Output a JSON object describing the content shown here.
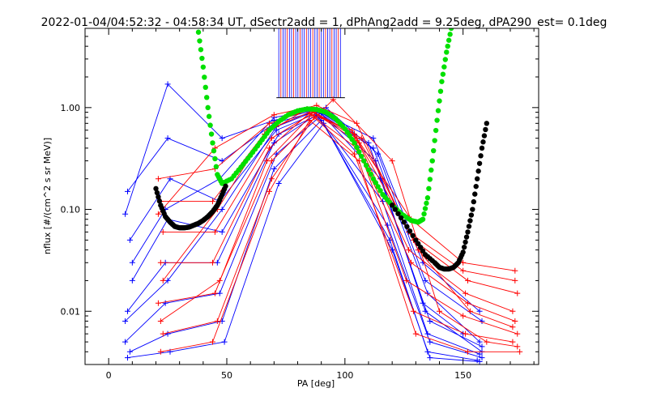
{
  "chart_data": {
    "type": "line",
    "title": "2022-01-04/04:52:32 - 04:58:34 UT, dSectr2add = 1, dPhAng2add = 9.25deg, dPA290_est=   0.1deg",
    "xlabel": "PA [deg]",
    "ylabel": "nflux [#/(cm^2 s sr MeV)]",
    "xlim": [
      -10,
      182
    ],
    "ylim": [
      0.003,
      6.0
    ],
    "yscale": "log",
    "x_ticks": [
      0,
      50,
      100,
      150
    ],
    "x_tick_labels": [
      "0",
      "50",
      "100",
      "150"
    ],
    "y_ticks": [
      0.01,
      0.1,
      1.0
    ],
    "y_tick_labels": [
      "0.01",
      "0.10",
      "1.00"
    ],
    "grid": false,
    "legend": "none",
    "colors": {
      "red_traces": "#ff0000",
      "blue_traces": "#0000ff",
      "green_fit": "#00e000",
      "black_fit": "#000000"
    },
    "series": [
      {
        "style": "blue-lines-plus-markers",
        "color": "#0000ff",
        "description_values": "representative pitch-angle distributions, blue sector",
        "traces": [
          {
            "x": [
              7,
              25,
              48,
              70,
              88,
              110,
              133,
              150
            ],
            "y": [
              0.09,
              1.7,
              0.5,
              0.75,
              0.95,
              0.45,
              0.012,
              0.006
            ]
          },
          {
            "x": [
              8,
              25,
              48,
              70,
              88,
              112,
              135,
              157
            ],
            "y": [
              0.15,
              0.5,
              0.3,
              0.7,
              0.92,
              0.4,
              0.015,
              0.005
            ]
          },
          {
            "x": [
              9,
              26,
              47,
              71,
              89,
              113,
              134,
              158
            ],
            "y": [
              0.05,
              0.2,
              0.12,
              0.6,
              0.9,
              0.3,
              0.01,
              0.004
            ]
          },
          {
            "x": [
              10,
              25,
              48,
              72,
              90,
              115,
              136,
              158
            ],
            "y": [
              0.02,
              0.08,
              0.06,
              0.55,
              0.88,
              0.2,
              0.008,
              0.0045
            ]
          },
          {
            "x": [
              8,
              24,
              46,
              70,
              88,
              116,
              135,
              157
            ],
            "y": [
              0.01,
              0.03,
              0.03,
              0.45,
              0.85,
              0.12,
              0.006,
              0.0038
            ]
          },
          {
            "x": [
              7,
              24,
              47,
              71,
              89,
              118,
              136,
              158
            ],
            "y": [
              0.005,
              0.012,
              0.015,
              0.35,
              0.8,
              0.07,
              0.005,
              0.0035
            ]
          },
          {
            "x": [
              9,
              25,
              48,
              70,
              90,
              119,
              135,
              156
            ],
            "y": [
              0.004,
              0.006,
              0.008,
              0.25,
              0.75,
              0.05,
              0.004,
              0.0033
            ]
          },
          {
            "x": [
              8,
              26,
              49,
              72,
              91,
              120,
              136,
              157
            ],
            "y": [
              0.0035,
              0.004,
              0.005,
              0.18,
              0.7,
              0.04,
              0.0035,
              0.0032
            ]
          },
          {
            "x": [
              10,
              24,
              47,
              70,
              92,
              114,
              134,
              158
            ],
            "y": [
              0.03,
              0.1,
              0.2,
              0.8,
              1.0,
              0.35,
              0.02,
              0.008
            ]
          },
          {
            "x": [
              7,
              25,
              48,
              71,
              88,
              112,
              133,
              157
            ],
            "y": [
              0.008,
              0.02,
              0.1,
              0.65,
              0.93,
              0.5,
              0.03,
              0.01
            ]
          }
        ]
      },
      {
        "style": "red-lines-plus-markers",
        "color": "#ff0000",
        "description_values": "representative pitch-angle distributions, red sector",
        "traces": [
          {
            "x": [
              21,
              45,
              68,
              85,
              105,
              128,
              150,
              172
            ],
            "y": [
              0.2,
              0.25,
              0.7,
              0.95,
              0.5,
              0.08,
              0.03,
              0.025
            ]
          },
          {
            "x": [
              22,
              44,
              67,
              86,
              106,
              129,
              152,
              173
            ],
            "y": [
              0.12,
              0.12,
              0.6,
              0.92,
              0.45,
              0.05,
              0.02,
              0.015
            ]
          },
          {
            "x": [
              23,
              45,
              69,
              87,
              104,
              127,
              151,
              171
            ],
            "y": [
              0.06,
              0.06,
              0.5,
              0.9,
              0.55,
              0.04,
              0.015,
              0.01
            ]
          },
          {
            "x": [
              22,
              44,
              68,
              85,
              105,
              128,
              152,
              172
            ],
            "y": [
              0.03,
              0.03,
              0.4,
              0.88,
              0.4,
              0.03,
              0.012,
              0.008
            ]
          },
          {
            "x": [
              21,
              45,
              67,
              86,
              103,
              126,
              150,
              173
            ],
            "y": [
              0.012,
              0.015,
              0.3,
              0.85,
              0.6,
              0.02,
              0.009,
              0.006
            ]
          },
          {
            "x": [
              23,
              46,
              69,
              87,
              104,
              129,
              151,
              171
            ],
            "y": [
              0.006,
              0.008,
              0.2,
              0.8,
              0.35,
              0.01,
              0.006,
              0.005
            ]
          },
          {
            "x": [
              22,
              44,
              68,
              85,
              106,
              130,
              152,
              174
            ],
            "y": [
              0.004,
              0.005,
              0.15,
              0.75,
              0.3,
              0.006,
              0.004,
              0.004
            ]
          },
          {
            "x": [
              21,
              45,
              70,
              88,
              105,
              127,
              150,
              172
            ],
            "y": [
              0.09,
              0.4,
              0.85,
              1.05,
              0.7,
              0.06,
              0.025,
              0.02
            ]
          },
          {
            "x": [
              23,
              46,
              66,
              84,
              107,
              131,
              153,
              171
            ],
            "y": [
              0.02,
              0.1,
              0.55,
              0.97,
              0.5,
              0.04,
              0.01,
              0.007
            ]
          },
          {
            "x": [
              22,
              47,
              69,
              95,
              120,
              140,
              160,
              173
            ],
            "y": [
              0.008,
              0.02,
              0.3,
              1.2,
              0.3,
              0.01,
              0.005,
              0.0045
            ]
          }
        ]
      },
      {
        "style": "green-dotted-fit",
        "color": "#00e000",
        "x": [
          38,
          40,
          42,
          44,
          46,
          48,
          52,
          56,
          60,
          64,
          68,
          72,
          76,
          80,
          84,
          88,
          92,
          96,
          100,
          104,
          108,
          112,
          116,
          120,
          124,
          128,
          131,
          133,
          135,
          137,
          139,
          141,
          143,
          145
        ],
        "y": [
          5.5,
          2.5,
          1.0,
          0.45,
          0.22,
          0.18,
          0.2,
          0.26,
          0.34,
          0.45,
          0.6,
          0.73,
          0.85,
          0.93,
          0.97,
          0.96,
          0.9,
          0.78,
          0.62,
          0.45,
          0.3,
          0.2,
          0.14,
          0.11,
          0.09,
          0.078,
          0.075,
          0.08,
          0.13,
          0.3,
          0.75,
          1.8,
          3.5,
          6.0
        ]
      },
      {
        "style": "black-dotted-fit",
        "color": "#000000",
        "x": [
          20,
          22,
          24,
          26,
          28,
          30,
          32,
          34,
          36,
          38,
          40,
          42,
          44,
          46,
          48,
          50,
          120,
          125,
          130,
          134,
          138,
          140,
          142,
          144,
          146,
          148,
          150,
          152,
          154,
          156,
          158,
          160
        ],
        "y": [
          0.16,
          0.11,
          0.085,
          0.075,
          0.068,
          0.066,
          0.066,
          0.067,
          0.07,
          0.073,
          0.078,
          0.085,
          0.095,
          0.11,
          0.14,
          0.18,
          0.11,
          0.075,
          0.05,
          0.036,
          0.03,
          0.027,
          0.026,
          0.026,
          0.027,
          0.03,
          0.038,
          0.06,
          0.1,
          0.2,
          0.4,
          0.7
        ]
      }
    ]
  }
}
